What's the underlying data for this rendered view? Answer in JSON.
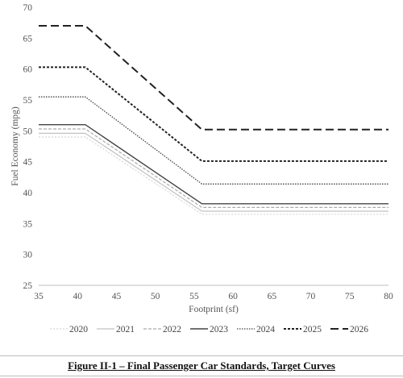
{
  "chart_data": {
    "type": "line",
    "title": "",
    "xlabel": "Footprint (sf)",
    "ylabel": "Fuel Economy (mpg)",
    "xlim": [
      35,
      80
    ],
    "ylim": [
      25,
      70
    ],
    "xticks": [
      35,
      40,
      45,
      50,
      55,
      60,
      65,
      70,
      75,
      80
    ],
    "yticks": [
      25,
      30,
      35,
      40,
      45,
      50,
      55,
      60,
      65,
      70
    ],
    "grid": false,
    "legend_position": "bottom",
    "series": [
      {
        "name": "2020",
        "color": "#d6d6d6",
        "dash": "2,2",
        "width": 1.2,
        "x": [
          35,
          41,
          56,
          80
        ],
        "y": [
          49.0,
          49.0,
          36.5,
          36.5
        ]
      },
      {
        "name": "2021",
        "color": "#c2c2c2",
        "dash": "",
        "width": 1.2,
        "x": [
          35,
          41,
          56,
          80
        ],
        "y": [
          49.6,
          49.6,
          37.0,
          37.0
        ]
      },
      {
        "name": "2022",
        "color": "#aaaaaa",
        "dash": "4,2",
        "width": 1.2,
        "x": [
          35,
          41,
          56,
          80
        ],
        "y": [
          50.3,
          50.3,
          37.6,
          37.6
        ]
      },
      {
        "name": "2023",
        "color": "#444444",
        "dash": "",
        "width": 1.4,
        "x": [
          35,
          41,
          56,
          80
        ],
        "y": [
          51.0,
          51.0,
          38.2,
          38.2
        ]
      },
      {
        "name": "2024",
        "color": "#444444",
        "dash": "1.5,1.5",
        "width": 1.3,
        "x": [
          35,
          41,
          56,
          80
        ],
        "y": [
          55.5,
          55.5,
          41.4,
          41.4
        ]
      },
      {
        "name": "2025",
        "color": "#222222",
        "dash": "3,2",
        "width": 2.0,
        "x": [
          35,
          41,
          56,
          80
        ],
        "y": [
          60.3,
          60.3,
          45.1,
          45.1
        ]
      },
      {
        "name": "2026",
        "color": "#222222",
        "dash": "10,5",
        "width": 2.0,
        "x": [
          35,
          41,
          56,
          80
        ],
        "y": [
          67.0,
          67.0,
          50.2,
          50.2
        ]
      }
    ]
  },
  "caption": "Figure II-1 – Final Passenger Car Standards, Target Curves"
}
